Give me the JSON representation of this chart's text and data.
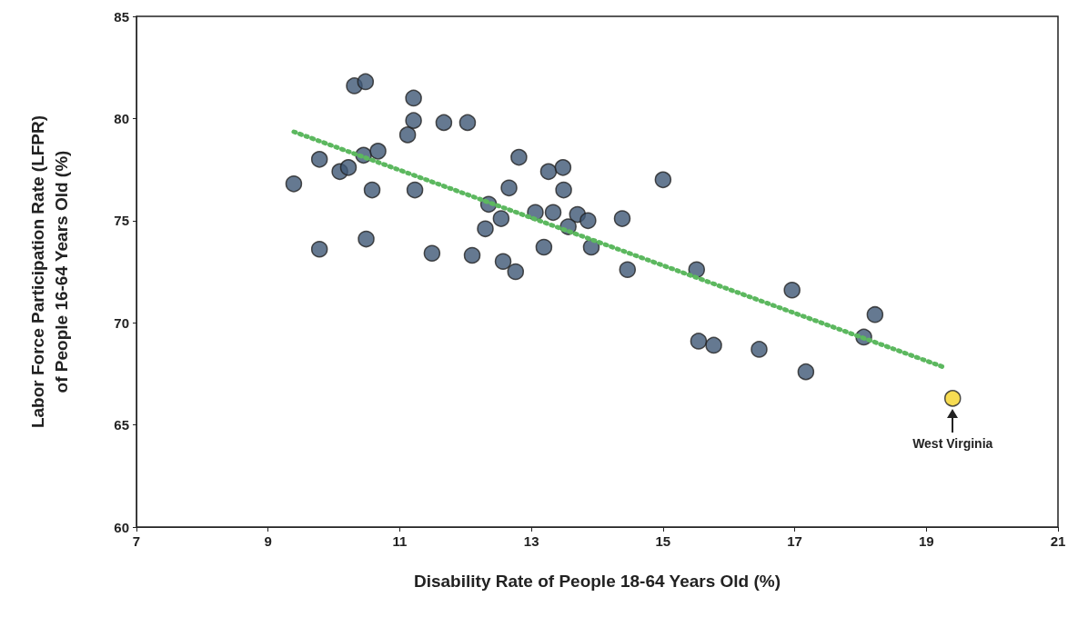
{
  "chart_data": {
    "type": "scatter",
    "xlabel": "Disability Rate of People 18-64 Years Old (%)",
    "ylabel": "Labor Force Participation Rate (LFPR)\nof People 16-64 Years Old (%)",
    "xlim": [
      7,
      21
    ],
    "ylim": [
      60,
      85
    ],
    "xticks": [
      7,
      9,
      11,
      13,
      15,
      17,
      19,
      21
    ],
    "yticks": [
      60,
      65,
      70,
      75,
      80,
      85
    ],
    "grid": false,
    "marker": "circle",
    "series": [
      {
        "color": "#3e5876",
        "x": [
          9.39,
          9.78,
          9.78,
          10.09,
          10.22,
          10.31,
          10.48,
          10.45,
          10.67,
          10.49,
          10.58,
          11.12,
          11.21,
          11.21,
          11.23,
          11.49,
          11.67,
          12.03,
          12.1,
          12.35,
          12.3,
          12.54,
          12.57,
          12.76,
          12.81,
          12.66,
          13.19,
          13.06,
          13.33,
          13.26,
          13.48,
          13.49,
          13.7,
          13.86,
          13.56,
          13.91,
          14.38,
          15.0,
          14.46,
          15.51,
          15.54,
          15.77,
          16.46,
          16.96,
          17.17,
          18.22,
          18.05
        ],
        "values": [
          76.8,
          73.6,
          78.0,
          77.4,
          77.6,
          81.6,
          81.8,
          78.2,
          78.4,
          74.1,
          76.5,
          79.2,
          81.0,
          79.9,
          76.5,
          73.4,
          79.8,
          79.8,
          73.3,
          75.8,
          74.6,
          75.1,
          73.0,
          72.5,
          78.1,
          76.6,
          73.7,
          75.4,
          75.4,
          77.4,
          77.6,
          76.5,
          75.3,
          75.0,
          74.7,
          73.7,
          75.1,
          77.0,
          72.6,
          72.6,
          69.1,
          68.9,
          68.7,
          71.6,
          67.6,
          70.4,
          69.3
        ]
      },
      {
        "color": "#f5d327",
        "x": [
          19.4
        ],
        "values": [
          66.3
        ]
      },
      {
        "type": "line",
        "color": "#5cb85f",
        "line_style": "dotted",
        "marker": "none",
        "x": [
          9.39,
          19.29
        ],
        "values": [
          79.35,
          67.8
        ]
      }
    ],
    "annotations": [
      {
        "text": "West Virginia",
        "x": 19.4,
        "y": 66.3
      }
    ]
  }
}
